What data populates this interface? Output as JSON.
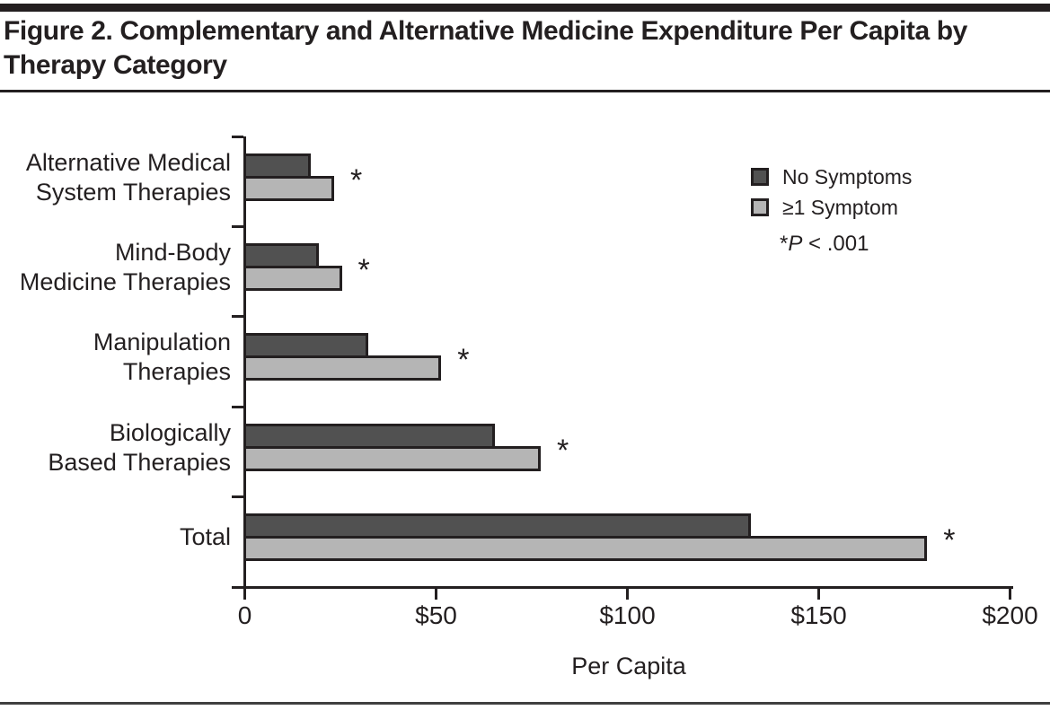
{
  "figure": {
    "title": "Figure 2. Complementary and Alternative Medicine Expenditure Per Capita by Therapy Category"
  },
  "chart_data": {
    "type": "bar",
    "orientation": "horizontal",
    "title": "Figure 2. Complementary and Alternative Medicine Expenditure Per Capita by Therapy Category",
    "categories": [
      "Alternative Medical System Therapies",
      "Mind-Body Medicine Therapies",
      "Manipulation Therapies",
      "Biologically Based Therapies",
      "Total"
    ],
    "category_label_lines": [
      [
        "Alternative Medical",
        "System Therapies"
      ],
      [
        "Mind-Body",
        "Medicine Therapies"
      ],
      [
        "Manipulation",
        "Therapies"
      ],
      [
        "Biologically",
        "Based Therapies"
      ],
      [
        "Total"
      ]
    ],
    "series": [
      {
        "name": "No Symptoms",
        "color": "#515151",
        "values": [
          17,
          19,
          32,
          65,
          132
        ]
      },
      {
        "name": "≥1 Symptom",
        "color": "#b5b5b5",
        "values": [
          23,
          25,
          51,
          77,
          178
        ]
      }
    ],
    "significant": [
      true,
      true,
      true,
      true,
      true
    ],
    "significance_marker": "*",
    "note": {
      "prefix": "*",
      "italic": "P",
      "suffix": " < .001"
    },
    "xlabel": "Per Capita",
    "xlim": [
      0,
      200
    ],
    "x_ticks": [
      {
        "value": 0,
        "label": "0"
      },
      {
        "value": 50,
        "label": "$50"
      },
      {
        "value": 100,
        "label": "$100"
      },
      {
        "value": 150,
        "label": "$150"
      },
      {
        "value": 200,
        "label": "$200"
      }
    ],
    "grid": false,
    "legend_position": "top-right",
    "colors": {
      "ink": "#231f20",
      "bar_border": "#231f20"
    }
  }
}
